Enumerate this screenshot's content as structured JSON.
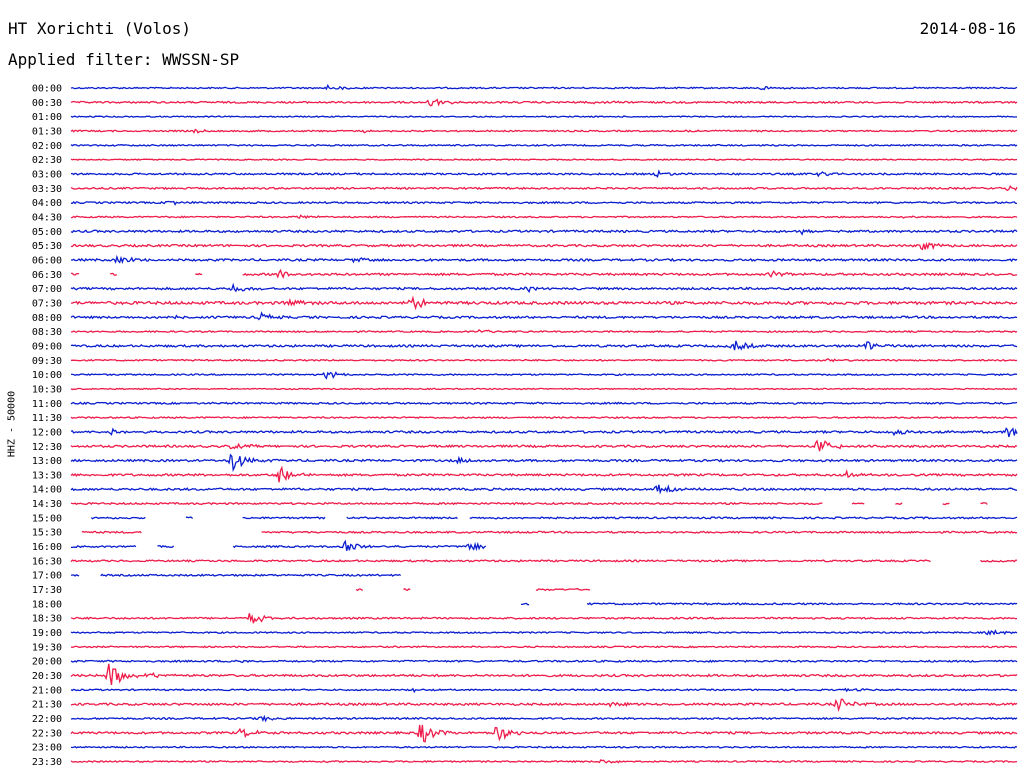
{
  "header": {
    "station": "HT Xorichti (Volos)",
    "date": "2014-08-16",
    "filter": "Applied filter: WWSSN-SP"
  },
  "chart_data": {
    "type": "line",
    "title": "HT Xorichti (Volos)",
    "subtitle": "Applied filter: WWSSN-SP",
    "ylabel": "HHZ - 50000",
    "colors": [
      "#0a1ecf",
      "#ee1c4a"
    ],
    "rows": [
      {
        "label": "00:00",
        "noise": 1,
        "events": [
          {
            "x": 0.27,
            "amp": 3
          },
          {
            "x": 0.73,
            "amp": 2
          }
        ],
        "gaps": []
      },
      {
        "label": "00:30",
        "noise": 1.2,
        "events": [
          {
            "x": 0.38,
            "amp": 5
          },
          {
            "x": 0.55,
            "amp": 2
          }
        ],
        "gaps": []
      },
      {
        "label": "01:00",
        "noise": 0.8,
        "events": [],
        "gaps": []
      },
      {
        "label": "01:30",
        "noise": 1,
        "events": [
          {
            "x": 0.13,
            "amp": 2
          },
          {
            "x": 0.31,
            "amp": 2
          },
          {
            "x": 0.65,
            "amp": 2
          }
        ],
        "gaps": []
      },
      {
        "label": "02:00",
        "noise": 1,
        "events": [],
        "gaps": []
      },
      {
        "label": "02:30",
        "noise": 0.8,
        "events": [],
        "gaps": []
      },
      {
        "label": "03:00",
        "noise": 1.2,
        "events": [
          {
            "x": 0.62,
            "amp": 4
          },
          {
            "x": 0.79,
            "amp": 4
          }
        ],
        "gaps": []
      },
      {
        "label": "03:30",
        "noise": 1.2,
        "events": [
          {
            "x": 0.99,
            "amp": 3
          }
        ],
        "gaps": []
      },
      {
        "label": "04:00",
        "noise": 1.2,
        "events": [
          {
            "x": 0.1,
            "amp": 3
          }
        ],
        "gaps": []
      },
      {
        "label": "04:30",
        "noise": 1,
        "events": [
          {
            "x": 0.24,
            "amp": 2
          },
          {
            "x": 0.88,
            "amp": 2
          }
        ],
        "gaps": []
      },
      {
        "label": "05:00",
        "noise": 1.5,
        "events": [
          {
            "x": 0.77,
            "amp": 3
          }
        ],
        "gaps": []
      },
      {
        "label": "05:30",
        "noise": 1.5,
        "events": [
          {
            "x": 0.9,
            "amp": 5
          }
        ],
        "gaps": []
      },
      {
        "label": "06:00",
        "noise": 1.5,
        "events": [
          {
            "x": 0.05,
            "amp": 5
          },
          {
            "x": 0.3,
            "amp": 3
          }
        ],
        "gaps": []
      },
      {
        "label": "06:30",
        "noise": 1.5,
        "events": [
          {
            "x": 0.22,
            "amp": 5
          },
          {
            "x": 0.74,
            "amp": 3
          }
        ],
        "gaps": [
          [
            0.01,
            0.04
          ],
          [
            0.05,
            0.13
          ],
          [
            0.14,
            0.18
          ]
        ]
      },
      {
        "label": "07:00",
        "noise": 1.5,
        "events": [
          {
            "x": 0.17,
            "amp": 5
          },
          {
            "x": 0.48,
            "amp": 3
          }
        ],
        "gaps": []
      },
      {
        "label": "07:30",
        "noise": 2,
        "events": [
          {
            "x": 0.36,
            "amp": 7
          },
          {
            "x": 0.23,
            "amp": 5
          }
        ],
        "gaps": []
      },
      {
        "label": "08:00",
        "noise": 1.5,
        "events": [
          {
            "x": 0.2,
            "amp": 4
          },
          {
            "x": 0.1,
            "amp": 3
          }
        ],
        "gaps": []
      },
      {
        "label": "08:30",
        "noise": 1,
        "events": [
          {
            "x": 0.43,
            "amp": 2
          }
        ],
        "gaps": []
      },
      {
        "label": "09:00",
        "noise": 1.5,
        "events": [
          {
            "x": 0.7,
            "amp": 6
          },
          {
            "x": 0.84,
            "amp": 6
          }
        ],
        "gaps": []
      },
      {
        "label": "09:30",
        "noise": 1,
        "events": [
          {
            "x": 0.8,
            "amp": 2
          }
        ],
        "gaps": []
      },
      {
        "label": "10:00",
        "noise": 1,
        "events": [
          {
            "x": 0.27,
            "amp": 4
          }
        ],
        "gaps": []
      },
      {
        "label": "10:30",
        "noise": 0.8,
        "events": [],
        "gaps": []
      },
      {
        "label": "11:00",
        "noise": 1.2,
        "events": [],
        "gaps": []
      },
      {
        "label": "11:30",
        "noise": 1,
        "events": [],
        "gaps": []
      },
      {
        "label": "12:00",
        "noise": 1.5,
        "events": [
          {
            "x": 0.04,
            "amp": 6
          },
          {
            "x": 0.87,
            "amp": 5
          },
          {
            "x": 0.99,
            "amp": 6
          }
        ],
        "gaps": []
      },
      {
        "label": "12:30",
        "noise": 1.5,
        "events": [
          {
            "x": 0.79,
            "amp": 10
          },
          {
            "x": 0.17,
            "amp": 3
          }
        ],
        "gaps": []
      },
      {
        "label": "13:00",
        "noise": 1.5,
        "events": [
          {
            "x": 0.17,
            "amp": 12
          },
          {
            "x": 0.41,
            "amp": 3
          }
        ],
        "gaps": []
      },
      {
        "label": "13:30",
        "noise": 1.5,
        "events": [
          {
            "x": 0.22,
            "amp": 9
          },
          {
            "x": 0.82,
            "amp": 3
          }
        ],
        "gaps": []
      },
      {
        "label": "14:00",
        "noise": 1.5,
        "events": [
          {
            "x": 0.62,
            "amp": 9
          }
        ],
        "gaps": []
      },
      {
        "label": "14:30",
        "noise": 1.2,
        "events": [],
        "gaps": [
          [
            0.795,
            0.825
          ],
          [
            0.84,
            0.87
          ],
          [
            0.88,
            0.92
          ],
          [
            0.93,
            0.96
          ],
          [
            0.97,
            1.0
          ]
        ]
      },
      {
        "label": "15:00",
        "noise": 1.2,
        "events": [],
        "gaps": [
          [
            0,
            0.02
          ],
          [
            0.08,
            0.12
          ],
          [
            0.13,
            0.16
          ],
          [
            0.16,
            0.18
          ],
          [
            0.27,
            0.29
          ],
          [
            0.41,
            0.42
          ]
        ]
      },
      {
        "label": "15:30",
        "noise": 1.2,
        "events": [],
        "gaps": [
          [
            0,
            0.01
          ],
          [
            0.075,
            0.2
          ]
        ]
      },
      {
        "label": "16:00",
        "noise": 1.2,
        "events": [
          {
            "x": 0.29,
            "amp": 7
          },
          {
            "x": 0.42,
            "amp": 6
          }
        ],
        "gaps": [
          [
            0.07,
            0.09
          ],
          [
            0.11,
            0.17
          ],
          [
            0.44,
            1.0
          ]
        ]
      },
      {
        "label": "16:30",
        "noise": 1.2,
        "events": [],
        "gaps": [
          [
            0.91,
            0.96
          ]
        ]
      },
      {
        "label": "17:00",
        "noise": 1.2,
        "events": [],
        "gaps": [
          [
            0.01,
            0.03
          ],
          [
            0.35,
            1.0
          ]
        ]
      },
      {
        "label": "17:30",
        "noise": 1.2,
        "events": [],
        "gaps": [
          [
            0,
            0.3
          ],
          [
            0.31,
            0.35
          ],
          [
            0.36,
            0.49
          ],
          [
            0.55,
            1.0
          ]
        ]
      },
      {
        "label": "18:00",
        "noise": 1.2,
        "events": [],
        "gaps": [
          [
            0,
            0.475
          ],
          [
            0.485,
            0.545
          ]
        ]
      },
      {
        "label": "18:30",
        "noise": 1.2,
        "events": [
          {
            "x": 0.19,
            "amp": 7
          }
        ],
        "gaps": []
      },
      {
        "label": "19:00",
        "noise": 1,
        "events": [
          {
            "x": 0.97,
            "amp": 3
          }
        ],
        "gaps": []
      },
      {
        "label": "19:30",
        "noise": 1,
        "events": [],
        "gaps": []
      },
      {
        "label": "20:00",
        "noise": 1.2,
        "events": [
          {
            "x": 0.17,
            "amp": 2
          }
        ],
        "gaps": []
      },
      {
        "label": "20:30",
        "noise": 1.5,
        "events": [
          {
            "x": 0.04,
            "amp": 14
          },
          {
            "x": 0.08,
            "amp": 3
          }
        ],
        "gaps": []
      },
      {
        "label": "21:00",
        "noise": 1,
        "events": [
          {
            "x": 0.36,
            "amp": 2
          },
          {
            "x": 0.82,
            "amp": 2
          }
        ],
        "gaps": []
      },
      {
        "label": "21:30",
        "noise": 1.5,
        "events": [
          {
            "x": 0.81,
            "amp": 7
          },
          {
            "x": 0.57,
            "amp": 2
          }
        ],
        "gaps": []
      },
      {
        "label": "22:00",
        "noise": 1.2,
        "events": [
          {
            "x": 0.2,
            "amp": 3
          }
        ],
        "gaps": []
      },
      {
        "label": "22:30",
        "noise": 1.5,
        "events": [
          {
            "x": 0.37,
            "amp": 12
          },
          {
            "x": 0.45,
            "amp": 10
          },
          {
            "x": 0.18,
            "amp": 5
          }
        ],
        "gaps": []
      },
      {
        "label": "23:00",
        "noise": 1,
        "events": [],
        "gaps": []
      },
      {
        "label": "23:30",
        "noise": 1,
        "events": [
          {
            "x": 0.56,
            "amp": 3
          }
        ],
        "gaps": []
      }
    ]
  }
}
